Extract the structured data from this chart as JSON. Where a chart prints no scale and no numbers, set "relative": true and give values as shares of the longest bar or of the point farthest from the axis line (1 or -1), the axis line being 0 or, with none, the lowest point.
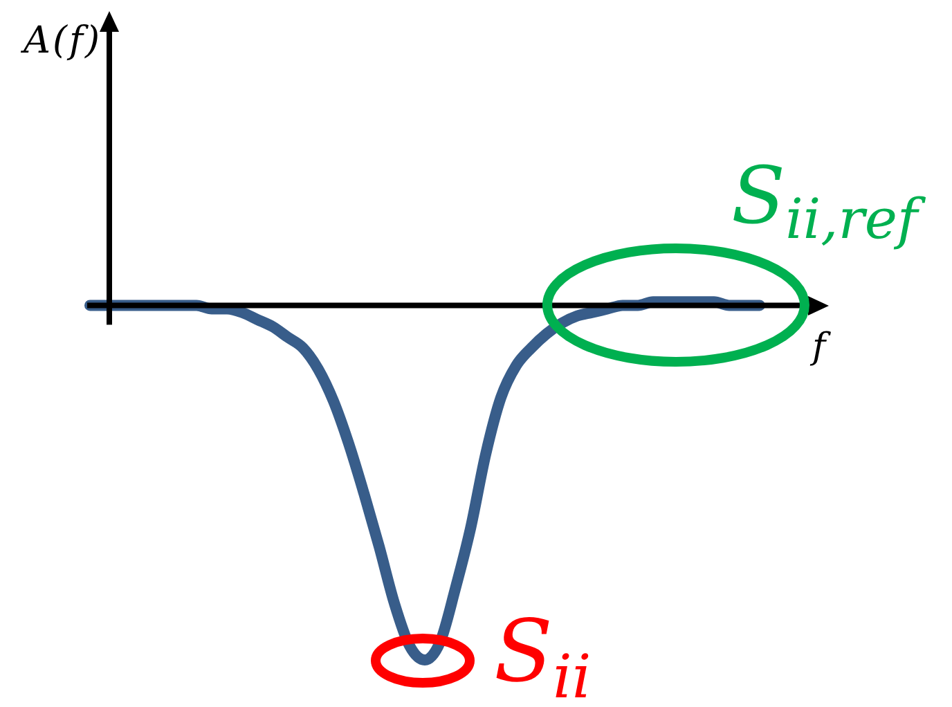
{
  "chart_data": {
    "type": "line",
    "xlabel": "f",
    "relative": true,
    "categories": [
      null,
      null,
      null,
      null,
      null,
      null,
      null,
      null,
      null,
      null,
      null,
      null,
      null,
      null,
      null,
      null,
      null,
      null,
      null,
      null,
      null,
      null,
      null,
      null,
      null,
      null,
      null,
      null,
      null,
      null,
      null,
      null,
      null,
      null,
      null,
      null,
      null,
      null,
      null,
      null,
      null,
      null,
      null,
      null,
      null
    ],
    "series": [
      {
        "color": "#385d8a",
        "values": [
          0,
          0,
          0,
          0,
          0,
          0,
          0,
          0,
          -0.01,
          -0.01,
          -0.02,
          -0.04,
          -0.06,
          -0.09,
          -0.12,
          -0.18,
          -0.27,
          -0.39,
          -0.53,
          -0.68,
          -0.84,
          -0.96,
          -1,
          -0.95,
          -0.8,
          -0.63,
          -0.42,
          -0.26,
          -0.17,
          -0.12,
          -0.08,
          -0.05,
          -0.03,
          -0.02,
          -0.01,
          0,
          0,
          0.01,
          0.01,
          0.01,
          0.01,
          0.01,
          0,
          0,
          0
        ]
      }
    ],
    "annotations": [
      "A(f)",
      "S$_{ii}$",
      "S$_{ii,ref}$"
    ]
  }
}
